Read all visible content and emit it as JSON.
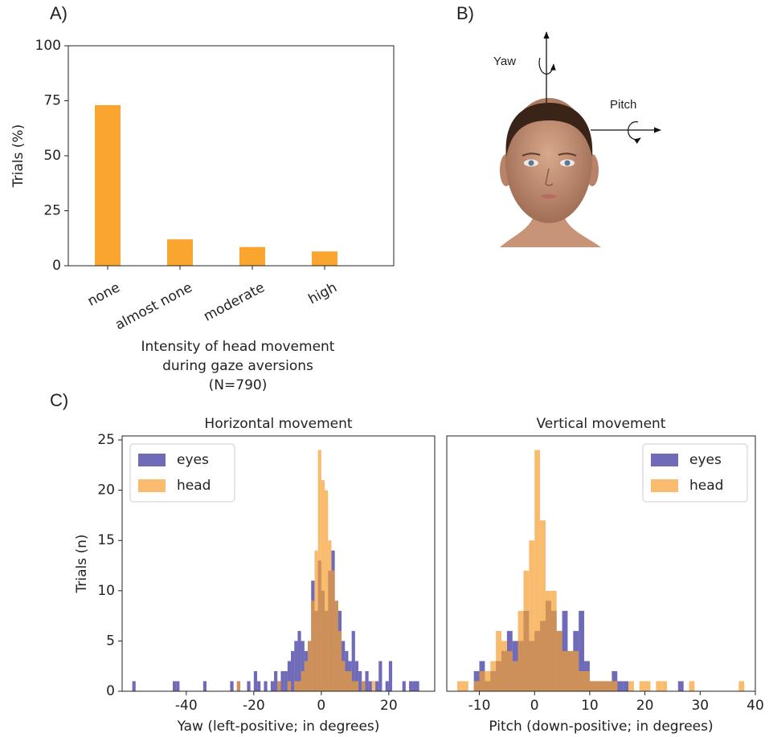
{
  "panel_labels": [
    "A)",
    "B)",
    "C)"
  ],
  "diagram": {
    "yaw": "Yaw",
    "pitch": "Pitch"
  },
  "chart_data": [
    {
      "type": "bar",
      "ylabel": "Trials (%)",
      "xlabel": [
        "Intensity of head movement",
        "during gaze aversions",
        "(N=790)"
      ],
      "categories": [
        "none",
        "almost none",
        "moderate",
        "high"
      ],
      "values": [
        73,
        12,
        8.5,
        6.5
      ],
      "color": "#f9a530",
      "ylim": [
        0,
        100
      ],
      "yticks": [
        0,
        25,
        50,
        75,
        100
      ]
    },
    {
      "type": "histogram",
      "title": "Horizontal movement",
      "xlabel": "Yaw (left-positive; in degrees)",
      "ylabel": "Trials (n)",
      "legend": "upper left",
      "bins": [
        -56,
        -55,
        -54,
        -53,
        -52,
        -51,
        -50,
        -49,
        -48,
        -47,
        -46,
        -45,
        -44,
        -43,
        -42,
        -41,
        -40,
        -39,
        -38,
        -37,
        -36,
        -35,
        -34,
        -33,
        -32,
        -31,
        -30,
        -29,
        -28,
        -27,
        -26,
        -25,
        -24,
        -23,
        -22,
        -21,
        -20,
        -19,
        -18,
        -17,
        -16,
        -15,
        -14,
        -13,
        -12,
        -11,
        -10,
        -9,
        -8,
        -7,
        -6,
        -5,
        -4,
        -3,
        -2,
        -1,
        0,
        1,
        2,
        3,
        4,
        5,
        6,
        7,
        8,
        9,
        10,
        11,
        12,
        13,
        14,
        15,
        16,
        17,
        18,
        19,
        20,
        21,
        22,
        23,
        24,
        25,
        26,
        27,
        28,
        29,
        30
      ],
      "series": [
        {
          "name": "eyes",
          "color": "#3f39a0",
          "values": [
            1,
            0,
            0,
            0,
            0,
            0,
            0,
            0,
            0,
            0,
            0,
            0,
            1,
            1,
            0,
            0,
            0,
            0,
            0,
            0,
            0,
            1,
            0,
            0,
            0,
            0,
            0,
            0,
            0,
            1,
            0,
            1,
            0,
            0,
            1,
            0,
            2,
            1,
            0,
            1,
            0,
            1,
            2,
            1,
            2,
            2,
            3,
            4,
            5,
            6,
            5,
            4,
            5,
            11,
            8,
            13,
            10,
            8,
            12,
            14,
            9,
            8,
            5,
            4,
            3,
            6,
            3,
            2,
            1,
            2,
            1,
            0,
            1,
            3,
            0,
            1,
            3,
            0,
            0,
            0,
            1,
            0,
            1,
            1,
            1,
            0
          ]
        },
        {
          "name": "head",
          "color": "#f7a030",
          "values": [
            0,
            0,
            0,
            0,
            0,
            0,
            0,
            0,
            0,
            0,
            0,
            0,
            0,
            0,
            0,
            0,
            0,
            0,
            0,
            0,
            0,
            0,
            0,
            0,
            0,
            0,
            0,
            0,
            0,
            0,
            0,
            1,
            0,
            0,
            0,
            0,
            0,
            0,
            0,
            0,
            0,
            0,
            0,
            1,
            0,
            0,
            1,
            0,
            1,
            1,
            2,
            3,
            5,
            9,
            14,
            24,
            21,
            20,
            15,
            12,
            9,
            6,
            3,
            2,
            2,
            1,
            1,
            0,
            1,
            0,
            0,
            1,
            0,
            0,
            0,
            0,
            0,
            0,
            0,
            0,
            0,
            0,
            0,
            0,
            0,
            0
          ]
        }
      ],
      "xlim": [
        -59,
        33.6
      ],
      "xticks": [
        -40,
        -20,
        0,
        20
      ],
      "ylim": [
        0,
        25.4
      ],
      "yticks": [
        0,
        5,
        10,
        15,
        20,
        25
      ]
    },
    {
      "type": "histogram",
      "title": "Vertical movement",
      "xlabel": "Pitch (down-positive; in degrees)",
      "legend": "upper right",
      "bins": [
        -15,
        -14,
        -13,
        -12,
        -11,
        -10,
        -9,
        -8,
        -7,
        -6,
        -5,
        -4,
        -3,
        -2,
        -1,
        0,
        1,
        2,
        3,
        4,
        5,
        6,
        7,
        8,
        9,
        10,
        11,
        12,
        13,
        14,
        15,
        16,
        17,
        18,
        19,
        20,
        21,
        22,
        23,
        24,
        25,
        26,
        27,
        28,
        29,
        30,
        31,
        32,
        33,
        34,
        35,
        36,
        37,
        38
      ],
      "series": [
        {
          "name": "eyes",
          "color": "#3f39a0",
          "values": [
            0,
            0,
            0,
            0,
            2,
            3,
            1,
            2,
            3,
            4,
            6,
            5,
            5,
            8,
            5,
            6,
            7,
            9,
            8,
            6,
            8,
            4,
            6,
            8,
            3,
            1,
            1,
            1,
            1,
            2,
            1,
            1,
            0,
            0,
            0,
            0,
            0,
            0,
            0,
            0,
            0,
            1,
            0,
            0,
            0,
            0,
            0,
            0,
            0,
            0,
            0,
            0,
            0
          ]
        },
        {
          "name": "head",
          "color": "#f7a030",
          "values": [
            0,
            1,
            1,
            0,
            1,
            2,
            2,
            3,
            6,
            5,
            4,
            3,
            8,
            12,
            15,
            24,
            17,
            10,
            10,
            6,
            4,
            4,
            4,
            2,
            2,
            1,
            1,
            1,
            1,
            1,
            0,
            0,
            1,
            0,
            1,
            1,
            0,
            1,
            1,
            0,
            0,
            0,
            0,
            1,
            0,
            0,
            0,
            0,
            0,
            0,
            0,
            0,
            1
          ]
        }
      ],
      "xlim": [
        -15.9,
        40
      ],
      "xticks": [
        -10,
        0,
        10,
        20,
        30,
        40
      ],
      "ylim": [
        0,
        25.4
      ]
    }
  ]
}
